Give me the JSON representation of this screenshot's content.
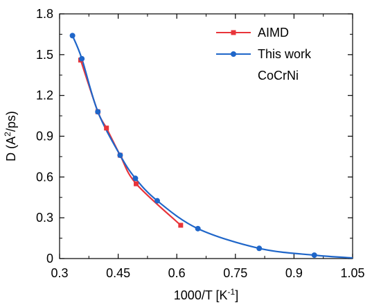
{
  "chart_data": {
    "type": "line",
    "title": "",
    "xlabel": {
      "main": "1000/T [K",
      "sup": "-1",
      "tail": "]"
    },
    "ylabel": {
      "main": "D (A",
      "sup": "2",
      "tail": "/ps)"
    },
    "xlim": [
      0.3,
      1.05
    ],
    "ylim": [
      0,
      1.8
    ],
    "xticks": [
      0.3,
      0.45,
      0.6,
      0.75,
      0.9,
      1.05
    ],
    "xtick_labels": [
      "0.3",
      "0.45",
      "0.6",
      "0.75",
      "0.9",
      "1.05"
    ],
    "yticks": [
      0,
      0.3,
      0.6,
      0.9,
      1.2,
      1.5,
      1.8
    ],
    "ytick_labels": [
      "0",
      "0.3",
      "0.6",
      "0.9",
      "1.2",
      "1.5",
      "1.8"
    ],
    "grid": false,
    "legend_position": "top-right",
    "annotation": "CoCrNi",
    "series": [
      {
        "name": "AIMD",
        "color": "#e8343a",
        "marker": "square",
        "x": [
          0.354,
          0.398,
          0.42,
          0.455,
          0.496,
          0.61
        ],
        "y": [
          1.46,
          1.08,
          0.96,
          0.76,
          0.55,
          0.245
        ]
      },
      {
        "name": "This work",
        "color": "#1f66c9",
        "marker": "circle",
        "x": [
          0.333,
          0.357,
          0.398,
          0.455,
          0.494,
          0.55,
          0.654,
          0.811,
          0.952
        ],
        "y": [
          1.64,
          1.47,
          1.08,
          0.76,
          0.59,
          0.425,
          0.22,
          0.075,
          0.025
        ],
        "fit_curve_end_x": 1.05,
        "fit_curve_end_y": 0.005
      }
    ]
  }
}
